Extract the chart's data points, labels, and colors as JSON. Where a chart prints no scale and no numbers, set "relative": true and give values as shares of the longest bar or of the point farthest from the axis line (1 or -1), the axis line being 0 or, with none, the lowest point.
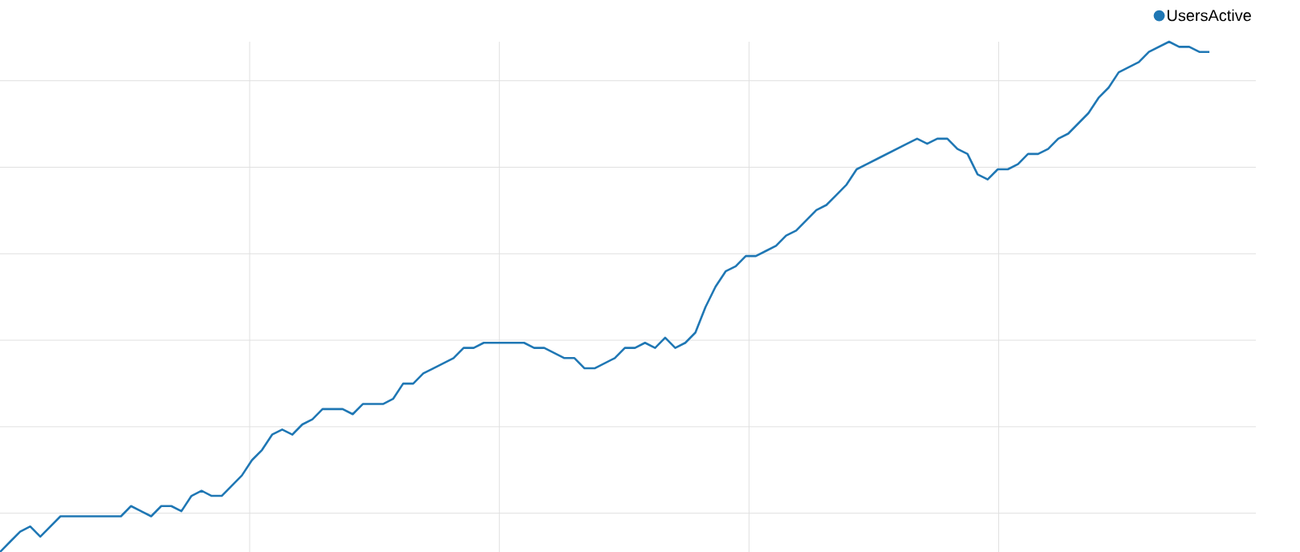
{
  "chart_data": {
    "type": "line",
    "relative": true,
    "grid": true,
    "legend": "top right",
    "marker": "none",
    "categories": [
      null,
      null,
      null,
      null,
      null,
      null,
      null,
      null,
      null,
      null,
      null,
      null,
      null,
      null,
      null,
      null,
      null,
      null,
      null,
      null,
      null,
      null,
      null,
      null,
      null,
      null,
      null,
      null,
      null,
      null,
      null,
      null,
      null,
      null,
      null,
      null,
      null,
      null,
      null,
      null,
      null,
      null,
      null,
      null,
      null,
      null,
      null,
      null,
      null,
      null,
      null,
      null,
      null,
      null,
      null,
      null,
      null,
      null,
      null,
      null,
      null,
      null,
      null,
      null,
      null,
      null,
      null,
      null,
      null,
      null,
      null,
      null,
      null,
      null,
      null,
      null,
      null,
      null,
      null,
      null,
      null,
      null,
      null,
      null,
      null,
      null,
      null,
      null,
      null,
      null,
      null,
      null,
      null,
      null,
      null,
      null,
      null,
      null,
      null,
      null,
      null,
      null,
      null,
      null,
      null,
      null,
      null,
      null,
      null,
      null,
      null,
      null,
      null,
      null,
      null,
      null,
      null,
      null,
      null,
      null,
      null
    ],
    "series": [
      {
        "name": "UsersActive",
        "color": "#1f77b4",
        "values": [
          0.0,
          0.02,
          0.04,
          0.05,
          0.03,
          0.05,
          0.07,
          0.07,
          0.07,
          0.07,
          0.07,
          0.07,
          0.07,
          0.09,
          0.08,
          0.07,
          0.09,
          0.09,
          0.08,
          0.11,
          0.12,
          0.11,
          0.11,
          0.13,
          0.15,
          0.18,
          0.2,
          0.23,
          0.24,
          0.23,
          0.25,
          0.26,
          0.28,
          0.28,
          0.28,
          0.27,
          0.29,
          0.29,
          0.29,
          0.3,
          0.33,
          0.33,
          0.35,
          0.36,
          0.37,
          0.38,
          0.4,
          0.4,
          0.41,
          0.41,
          0.41,
          0.41,
          0.41,
          0.4,
          0.4,
          0.39,
          0.38,
          0.38,
          0.36,
          0.36,
          0.37,
          0.38,
          0.4,
          0.4,
          0.41,
          0.4,
          0.42,
          0.4,
          0.41,
          0.43,
          0.48,
          0.52,
          0.55,
          0.56,
          0.58,
          0.58,
          0.59,
          0.6,
          0.62,
          0.63,
          0.65,
          0.67,
          0.68,
          0.7,
          0.72,
          0.75,
          0.76,
          0.77,
          0.78,
          0.79,
          0.8,
          0.81,
          0.8,
          0.81,
          0.81,
          0.79,
          0.78,
          0.74,
          0.73,
          0.75,
          0.75,
          0.76,
          0.78,
          0.78,
          0.79,
          0.81,
          0.82,
          0.84,
          0.86,
          0.89,
          0.91,
          0.94,
          0.95,
          0.96,
          0.98,
          0.99,
          1.0,
          0.99,
          0.99,
          0.98,
          0.98
        ]
      }
    ]
  }
}
